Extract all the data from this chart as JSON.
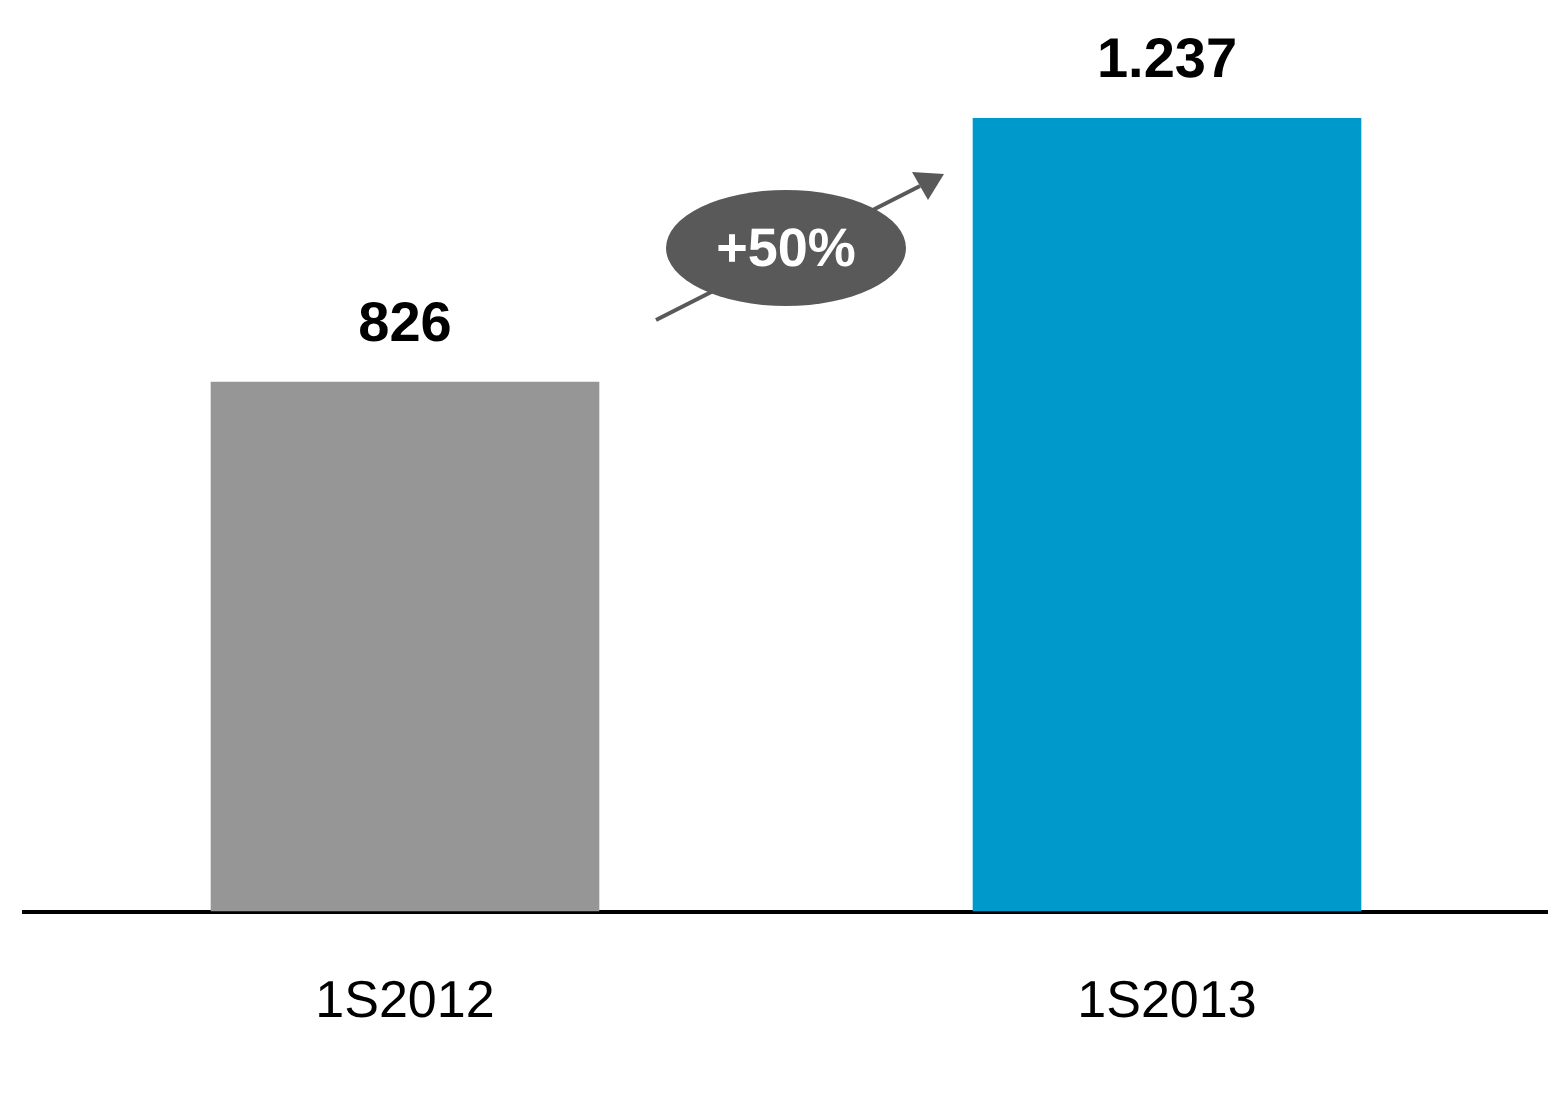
{
  "chart_data": {
    "type": "bar",
    "categories": [
      "1S2012",
      "1S2013"
    ],
    "values": [
      826,
      1237
    ],
    "colors": [
      "#969696",
      "#0099cc"
    ],
    "tick_labels": "x",
    "value_labels": [
      "826",
      "1.237"
    ],
    "annotations": [
      "+50%"
    ],
    "grid": false,
    "legend": false
  }
}
